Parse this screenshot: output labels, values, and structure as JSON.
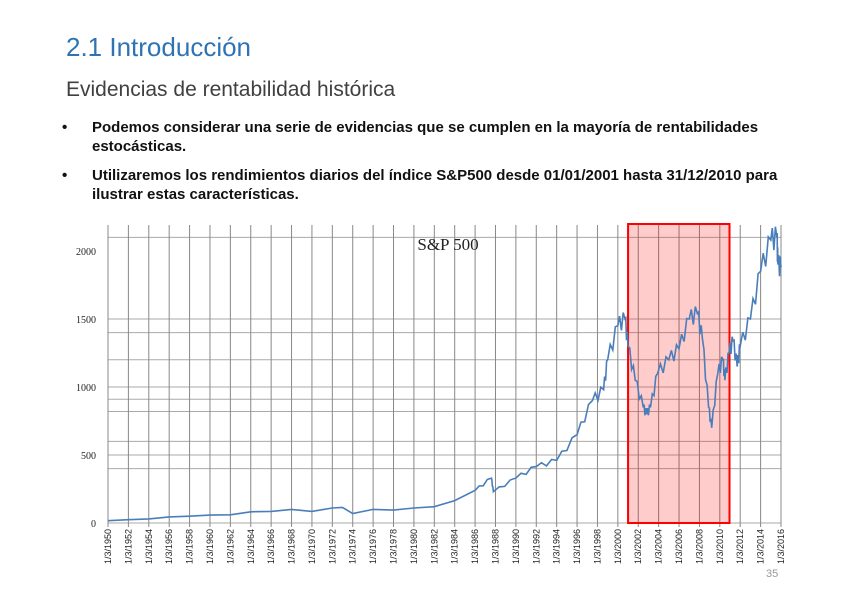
{
  "slide": {
    "title": "2.1 Introducción",
    "subtitle": "Evidencias de rentabilidad histórica",
    "bullets": [
      "Podemos considerar una serie de evidencias que se cumplen en la mayoría de rentabilidades estocásticas.",
      "Utilizaremos los rendimientos diarios del índice S&P500 desde 01/01/2001 hasta 31/12/2010 para ilustrar estas características."
    ],
    "bullet_symbol": "•",
    "page_number": "35"
  },
  "chart_data": {
    "type": "line",
    "title": "S&P 500",
    "xlabel": "",
    "ylabel": "",
    "xlim": [
      1950,
      2016
    ],
    "ylim": [
      0,
      2200
    ],
    "grid": true,
    "y_ticks": [
      "0",
      "500",
      "1000",
      "1500",
      "2000"
    ],
    "x_tick_labels": [
      "1/3/1950",
      "1/3/1952",
      "1/3/1954",
      "1/3/1956",
      "1/3/1958",
      "1/3/1960",
      "1/3/1962",
      "1/3/1964",
      "1/3/1966",
      "1/3/1968",
      "1/3/1970",
      "1/3/1972",
      "1/3/1974",
      "1/3/1976",
      "1/3/1978",
      "1/3/1980",
      "1/3/1982",
      "1/3/1984",
      "1/3/1986",
      "1/3/1988",
      "1/3/1990",
      "1/3/1992",
      "1/3/1994",
      "1/3/1996",
      "1/3/1998",
      "1/3/2000",
      "1/3/2002",
      "1/3/2004",
      "1/3/2006",
      "1/3/2008",
      "1/3/2010",
      "1/3/2012",
      "1/3/2014",
      "1/3/2016"
    ],
    "series": [
      {
        "color": "#4A7EBB",
        "x": [
          1950,
          1952,
          1954,
          1956,
          1958,
          1960,
          1962,
          1964,
          1966,
          1968,
          1970,
          1972,
          1973,
          1974,
          1976,
          1978,
          1980,
          1982,
          1984,
          1986,
          1987.6,
          1987.8,
          1990,
          1992,
          1994,
          1996,
          1997.5,
          1998.6,
          1999,
          2000,
          2000.7,
          2001,
          2001.7,
          2002.5,
          2002.8,
          2003.2,
          2003.9,
          2005,
          2006,
          2007,
          2007.8,
          2008.3,
          2008.9,
          2009.2,
          2009.8,
          2010.3,
          2010.5,
          2010.9,
          2011.3,
          2011.7,
          2012,
          2013,
          2014,
          2015,
          2015.6,
          2015.7,
          2016
        ],
        "y": [
          17,
          24,
          30,
          45,
          50,
          58,
          60,
          82,
          85,
          100,
          85,
          110,
          115,
          70,
          100,
          95,
          110,
          120,
          165,
          240,
          330,
          230,
          330,
          415,
          460,
          650,
          900,
          980,
          1200,
          1450,
          1500,
          1300,
          1050,
          850,
          800,
          850,
          1100,
          1200,
          1280,
          1500,
          1540,
          1350,
          850,
          700,
          1100,
          1200,
          1050,
          1250,
          1340,
          1150,
          1300,
          1500,
          1850,
          2080,
          2100,
          1900,
          1880
        ]
      }
    ],
    "highlight": {
      "from": 2001.0,
      "to": 2010.95,
      "color": "#FF0000"
    }
  }
}
